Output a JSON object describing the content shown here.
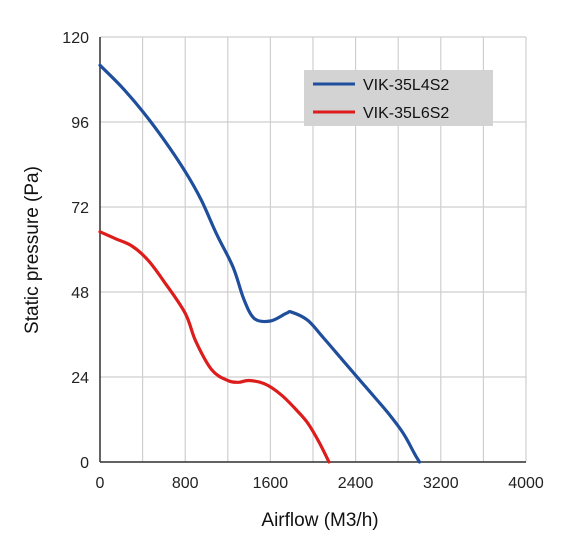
{
  "chart_data": {
    "type": "line",
    "xlabel": "Airflow (M3/h)",
    "ylabel": "Static pressure (Pa)",
    "xlim": [
      0,
      4000
    ],
    "ylim": [
      0,
      120
    ],
    "x_ticks": [
      "0",
      "800",
      "1600",
      "2400",
      "3200",
      "4000"
    ],
    "y_ticks": [
      "0",
      "24",
      "48",
      "72",
      "96",
      "120"
    ],
    "grid": true,
    "legend_position": "top-right",
    "series": [
      {
        "name": "VIK-35L4S2",
        "color": "#1f4e9c",
        "points": [
          [
            0,
            112
          ],
          [
            200,
            106
          ],
          [
            400,
            99
          ],
          [
            600,
            91
          ],
          [
            800,
            82
          ],
          [
            950,
            74
          ],
          [
            1100,
            64
          ],
          [
            1250,
            55
          ],
          [
            1350,
            46
          ],
          [
            1450,
            40.5
          ],
          [
            1600,
            39.8
          ],
          [
            1750,
            42
          ],
          [
            1800,
            42.3
          ],
          [
            1950,
            40
          ],
          [
            2100,
            35
          ],
          [
            2300,
            28
          ],
          [
            2500,
            21
          ],
          [
            2700,
            14
          ],
          [
            2850,
            8
          ],
          [
            2950,
            2.5
          ],
          [
            3000,
            0
          ]
        ]
      },
      {
        "name": "VIK-35L6S2",
        "color": "#dd1c1c",
        "points": [
          [
            0,
            65
          ],
          [
            150,
            63
          ],
          [
            300,
            61
          ],
          [
            450,
            57
          ],
          [
            600,
            51
          ],
          [
            800,
            42
          ],
          [
            900,
            34
          ],
          [
            1050,
            26
          ],
          [
            1200,
            23
          ],
          [
            1300,
            22.5
          ],
          [
            1400,
            23
          ],
          [
            1550,
            22
          ],
          [
            1700,
            19
          ],
          [
            1850,
            14.5
          ],
          [
            1950,
            11
          ],
          [
            2050,
            6
          ],
          [
            2150,
            0
          ]
        ]
      }
    ]
  }
}
